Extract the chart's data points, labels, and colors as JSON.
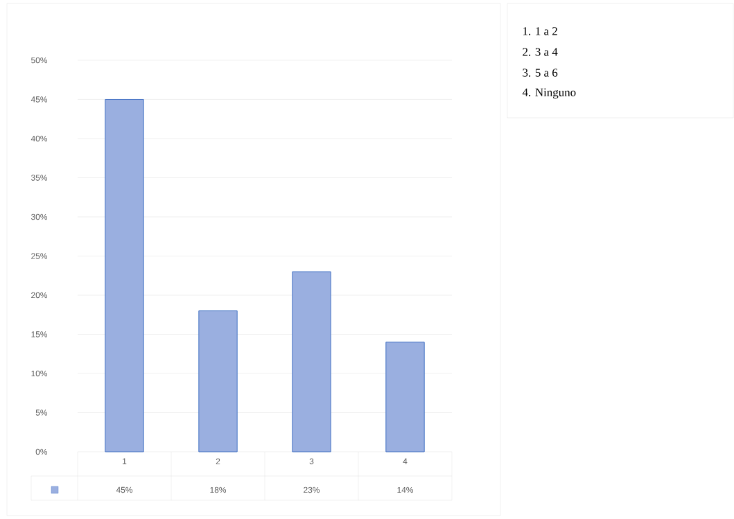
{
  "chart_data": {
    "type": "bar",
    "categories": [
      "1",
      "2",
      "3",
      "4"
    ],
    "values": [
      45,
      18,
      23,
      14
    ],
    "value_labels": [
      "45%",
      "18%",
      "23%",
      "14%"
    ],
    "color": "#9aafe0",
    "ylim": [
      0,
      50
    ],
    "yticks": [
      {
        "value": 0,
        "label": "0%"
      },
      {
        "value": 5,
        "label": "5%"
      },
      {
        "value": 10,
        "label": "10%"
      },
      {
        "value": 15,
        "label": "15%"
      },
      {
        "value": 20,
        "label": "20%"
      },
      {
        "value": 25,
        "label": "25%"
      },
      {
        "value": 30,
        "label": "30%"
      },
      {
        "value": 35,
        "label": "35%"
      },
      {
        "value": 40,
        "label": "40%"
      },
      {
        "value": 45,
        "label": "45%"
      },
      {
        "value": 50,
        "label": "50%"
      }
    ],
    "grid": "y",
    "annotations": [
      "1. 1 a 2",
      "2. 3 a 4",
      "3. 5 a 6",
      "4. Ninguno"
    ]
  }
}
